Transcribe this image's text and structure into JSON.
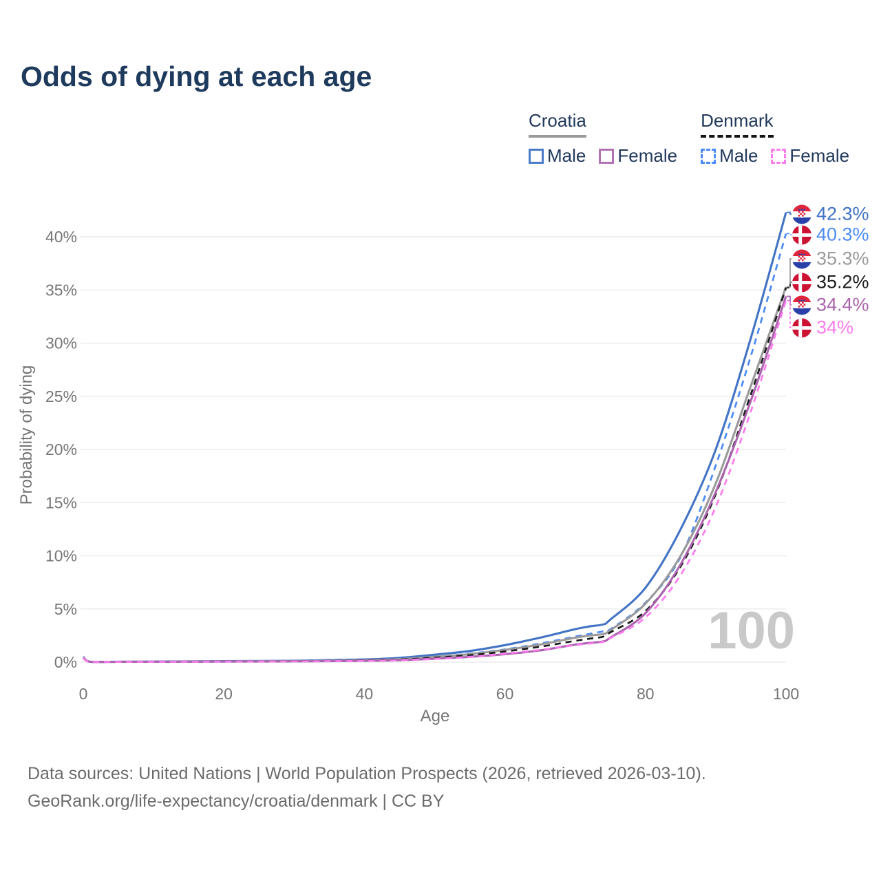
{
  "title": "Odds of dying at each age",
  "legend": {
    "croatia": {
      "label": "Croatia",
      "male": "Male",
      "female": "Female"
    },
    "denmark": {
      "label": "Denmark",
      "male": "Male",
      "female": "Female"
    }
  },
  "axes": {
    "x_label": "Age",
    "y_label": "Probability of dying",
    "x_ticks": [
      0,
      20,
      40,
      60,
      80,
      100
    ],
    "y_ticks": [
      0,
      5,
      10,
      15,
      20,
      25,
      30,
      35,
      40
    ],
    "y_tick_suffix": "%",
    "x_range": [
      0,
      100
    ],
    "y_range": [
      0,
      43
    ]
  },
  "annotations": {
    "age_readout": "100"
  },
  "footer": {
    "line1": "Data sources: United Nations | World Population Prospects (2026, retrieved 2026-03-10).",
    "line2": "GeoRank.org/life-expectancy/croatia/denmark | CC BY"
  },
  "colors": {
    "title": "#1e3a5c",
    "axis_text": "#757575",
    "gridline": "#e7e7e7",
    "watermark": "#c9c9c9",
    "croatia_underline": "#9a9a9a",
    "denmark_underline": "#141414"
  },
  "chart_data": {
    "type": "line",
    "title": "Odds of dying at each age",
    "xlabel": "Age",
    "ylabel": "Probability of dying",
    "xlim": [
      0,
      100
    ],
    "ylim": [
      0,
      43
    ],
    "grid": "horizontal",
    "legend_position": "top-right",
    "x": [
      0,
      1,
      5,
      10,
      20,
      30,
      40,
      45,
      50,
      55,
      60,
      65,
      70,
      72,
      74,
      75,
      80,
      85,
      90,
      95,
      100
    ],
    "series": [
      {
        "name": "Croatia Male",
        "country": "Croatia",
        "sex": "Male",
        "color": "#4273c4",
        "dash": false,
        "end_label": "42.3%",
        "end_value": 42.3,
        "values": [
          0.5,
          0.04,
          0.04,
          0.05,
          0.1,
          0.13,
          0.25,
          0.4,
          0.7,
          1.05,
          1.6,
          2.3,
          3.1,
          3.35,
          3.55,
          4.0,
          7.0,
          12.5,
          20.0,
          30.5,
          42.3
        ]
      },
      {
        "name": "Denmark Male",
        "country": "Denmark",
        "sex": "Male",
        "color": "#4c8bf5",
        "dash": true,
        "end_label": "40.3%",
        "end_value": 40.3,
        "values": [
          0.45,
          0.03,
          0.03,
          0.04,
          0.08,
          0.11,
          0.2,
          0.3,
          0.5,
          0.8,
          1.2,
          1.75,
          2.4,
          2.65,
          2.9,
          3.1,
          5.6,
          9.9,
          18.5,
          28.8,
          40.3
        ]
      },
      {
        "name": "Croatia Both sexes",
        "country": "Croatia",
        "sex": "Total",
        "color": "#9a9a9a",
        "dash": false,
        "end_label": "35.3%",
        "end_value": 35.3,
        "values": [
          0.45,
          0.04,
          0.04,
          0.04,
          0.07,
          0.1,
          0.18,
          0.28,
          0.5,
          0.75,
          1.15,
          1.65,
          2.3,
          2.5,
          2.65,
          3.0,
          5.5,
          10.0,
          16.8,
          26.0,
          35.3
        ]
      },
      {
        "name": "Denmark Both sexes",
        "country": "Denmark",
        "sex": "Total",
        "color": "#1a1a1a",
        "dash": true,
        "end_label": "35.2%",
        "end_value": 35.2,
        "values": [
          0.4,
          0.03,
          0.03,
          0.04,
          0.06,
          0.09,
          0.16,
          0.24,
          0.42,
          0.65,
          1.0,
          1.45,
          2.0,
          2.2,
          2.4,
          2.8,
          4.8,
          9.0,
          15.8,
          25.2,
          35.2
        ]
      },
      {
        "name": "Croatia Female",
        "country": "Croatia",
        "sex": "Female",
        "color": "#aa64ad",
        "dash": false,
        "end_label": "34.4%",
        "end_value": 34.4,
        "values": [
          0.42,
          0.03,
          0.03,
          0.04,
          0.05,
          0.07,
          0.12,
          0.18,
          0.32,
          0.5,
          0.75,
          1.1,
          1.65,
          1.8,
          1.95,
          2.3,
          4.6,
          9.2,
          16.0,
          24.6,
          34.4
        ]
      },
      {
        "name": "Denmark Female",
        "country": "Denmark",
        "sex": "Female",
        "color": "#fb7cee",
        "dash": true,
        "end_label": "34%",
        "end_value": 34.0,
        "values": [
          0.38,
          0.03,
          0.03,
          0.03,
          0.05,
          0.07,
          0.12,
          0.17,
          0.3,
          0.48,
          0.8,
          1.15,
          1.6,
          1.75,
          1.9,
          2.25,
          4.2,
          8.2,
          14.6,
          23.6,
          34.0
        ]
      }
    ]
  }
}
